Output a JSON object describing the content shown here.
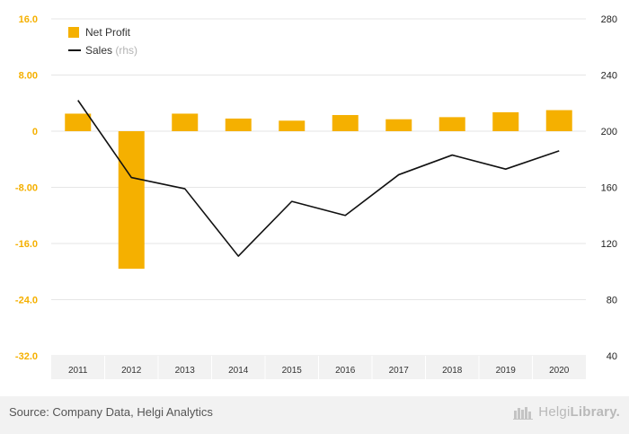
{
  "chart_data": {
    "type": "bar",
    "categories": [
      "2011",
      "2012",
      "2013",
      "2014",
      "2015",
      "2016",
      "2017",
      "2018",
      "2019",
      "2020"
    ],
    "series": [
      {
        "name": "Net Profit",
        "kind": "bar",
        "axis": "left",
        "color": "#f5b000",
        "values": [
          2.5,
          -19.6,
          2.5,
          1.8,
          1.5,
          2.3,
          1.7,
          2.0,
          2.7,
          3.0
        ]
      },
      {
        "name": "Sales",
        "unit": "(rhs)",
        "kind": "line",
        "axis": "right",
        "color": "#111111",
        "values": [
          222,
          167,
          159,
          111,
          150,
          140,
          169,
          183,
          173,
          186
        ]
      }
    ],
    "y_left": {
      "ylim": [
        -32,
        16
      ],
      "ticks": [
        "16.0",
        "8.00",
        "0",
        "-8.00",
        "-16.0",
        "-24.0",
        "-32.0"
      ],
      "tick_values": [
        16,
        8,
        0,
        -8,
        -16,
        -24,
        -32
      ],
      "tick_color": "#f5b000"
    },
    "y_right": {
      "ylim": [
        40,
        280
      ],
      "ticks": [
        "280",
        "240",
        "200",
        "160",
        "120",
        "80",
        "40"
      ],
      "tick_values": [
        280,
        240,
        200,
        160,
        120,
        80,
        40
      ]
    },
    "grid": true,
    "legend_position": "top-left"
  },
  "legend": {
    "items": [
      {
        "label": "Net Profit",
        "unit": "",
        "color": "#f5b000",
        "kind": "bar"
      },
      {
        "label": "Sales",
        "unit": "(rhs)",
        "color": "#111111",
        "kind": "line"
      }
    ]
  },
  "footer": {
    "source": "Source: Company Data, Helgi Analytics",
    "logo_regular": "Helgi",
    "logo_bold": "Library."
  },
  "colors": {
    "grid": "#e6e6e6",
    "axis_band": "#f2f2f2",
    "text": "#333333",
    "muted": "#b3b3b3"
  }
}
